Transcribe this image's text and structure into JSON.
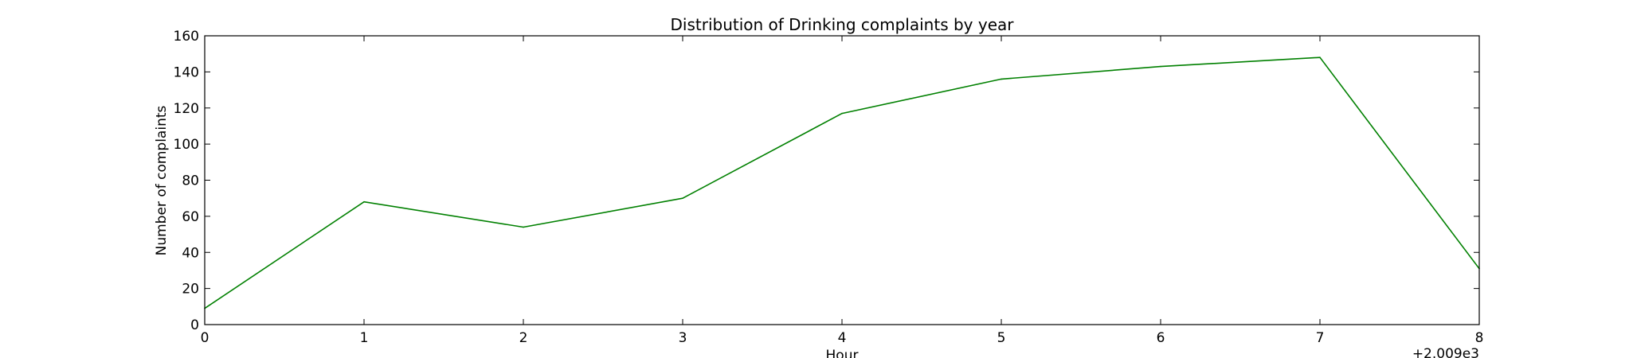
{
  "chart_data": {
    "type": "line",
    "title": "Distribution of  Drinking complaints by year",
    "xlabel": "Hour",
    "ylabel": "Number of complaints",
    "x_offset_label": "+2.009e3",
    "xlim": [
      0,
      8
    ],
    "ylim": [
      0,
      160
    ],
    "xticks": [
      "0",
      "1",
      "2",
      "3",
      "4",
      "5",
      "6",
      "7",
      "8"
    ],
    "yticks": [
      "0",
      "20",
      "40",
      "60",
      "80",
      "100",
      "120",
      "140",
      "160"
    ],
    "grid": false,
    "series": [
      {
        "color": "#008000",
        "x": [
          0,
          1,
          2,
          3,
          4,
          5,
          6,
          7,
          8
        ],
        "values": [
          9,
          68,
          54,
          70,
          117,
          136,
          143,
          148,
          31
        ]
      }
    ]
  }
}
